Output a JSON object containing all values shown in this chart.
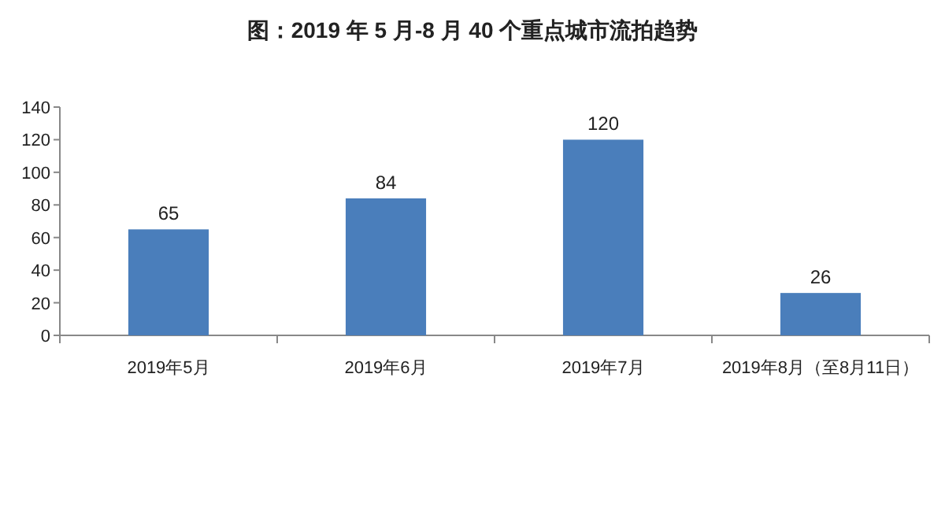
{
  "chart_data": {
    "type": "bar",
    "title": "图：2019 年 5 月-8 月 40 个重点城市流拍趋势",
    "categories": [
      "2019年5月",
      "2019年6月",
      "2019年7月",
      "2019年8月（至8月11日）"
    ],
    "values": [
      65,
      84,
      120,
      26
    ],
    "color": "#4a7ebb",
    "ylim": [
      0,
      140
    ],
    "yticks": [
      0,
      20,
      40,
      60,
      80,
      100,
      120,
      140
    ],
    "data_labels": true
  }
}
